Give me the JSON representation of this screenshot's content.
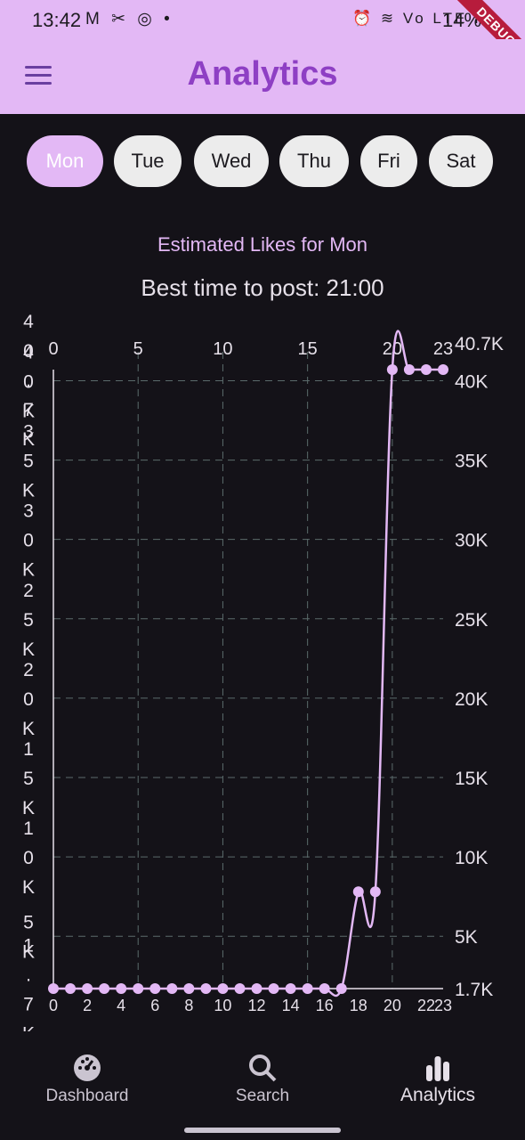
{
  "status": {
    "time": "13:42",
    "left_icons": "M ✂ ◎ •",
    "right_icons": "⏰ ≋ Vo LTE ıll",
    "battery": "14%"
  },
  "debug_label": "DEBUG",
  "appbar": {
    "title": "Analytics",
    "menu_icon": "hamburger-menu-icon"
  },
  "days": [
    {
      "label": "Mon",
      "selected": true
    },
    {
      "label": "Tue",
      "selected": false
    },
    {
      "label": "Wed",
      "selected": false
    },
    {
      "label": "Thu",
      "selected": false
    },
    {
      "label": "Fri",
      "selected": false
    },
    {
      "label": "Sat",
      "selected": false
    }
  ],
  "chart_heading": "Estimated Likes for Mon",
  "best_time": "Best time to post: 21:00",
  "chart_data": {
    "type": "line",
    "x": [
      0,
      1,
      2,
      3,
      4,
      5,
      6,
      7,
      8,
      9,
      10,
      11,
      12,
      13,
      14,
      15,
      16,
      17,
      18,
      19,
      20,
      21,
      22,
      23
    ],
    "values": [
      1700,
      1700,
      1700,
      1700,
      1700,
      1700,
      1700,
      1700,
      1700,
      1700,
      1700,
      1700,
      1700,
      1700,
      1700,
      1700,
      1700,
      1700,
      7800,
      7800,
      40700,
      40700,
      40700,
      40700
    ],
    "ylim": [
      1700,
      40700
    ],
    "xlim": [
      0,
      23
    ],
    "y_ticks": [
      {
        "v": 1700,
        "t": "1.7K"
      },
      {
        "v": 5000,
        "t": "5K"
      },
      {
        "v": 10000,
        "t": "10K"
      },
      {
        "v": 15000,
        "t": "15K"
      },
      {
        "v": 20000,
        "t": "20K"
      },
      {
        "v": 25000,
        "t": "25K"
      },
      {
        "v": 30000,
        "t": "30K"
      },
      {
        "v": 35000,
        "t": "35K"
      },
      {
        "v": 40000,
        "t": "40K"
      },
      {
        "v": 40700,
        "t": "40.7K"
      }
    ],
    "left_y_ticks": [
      {
        "v": 1700,
        "t": "1.7K"
      },
      {
        "v": 5000,
        "t": "5K"
      },
      {
        "v": 10000,
        "t": "10K"
      },
      {
        "v": 15000,
        "t": "15K"
      },
      {
        "v": 20000,
        "t": "20K"
      },
      {
        "v": 25000,
        "t": "25K"
      },
      {
        "v": 30000,
        "t": "30K"
      },
      {
        "v": 35000,
        "t": "35K"
      },
      {
        "v": 40000,
        "t": "40K"
      },
      {
        "v": 40700,
        "t": "40.7K"
      }
    ],
    "top_x_ticks": [
      0,
      5,
      10,
      15,
      20,
      23
    ],
    "bottom_x_ticks": [
      0,
      2,
      4,
      6,
      8,
      10,
      12,
      14,
      16,
      18,
      20,
      22,
      23
    ],
    "grid": true,
    "line_color": "#e3b8f5",
    "grid_color": "#5b6b6b"
  },
  "nav": [
    {
      "label": "Dashboard",
      "icon": "dashboard-icon",
      "active": false
    },
    {
      "label": "Search",
      "icon": "search-icon",
      "active": false
    },
    {
      "label": "Analytics",
      "icon": "bar-chart-icon",
      "active": true
    }
  ]
}
